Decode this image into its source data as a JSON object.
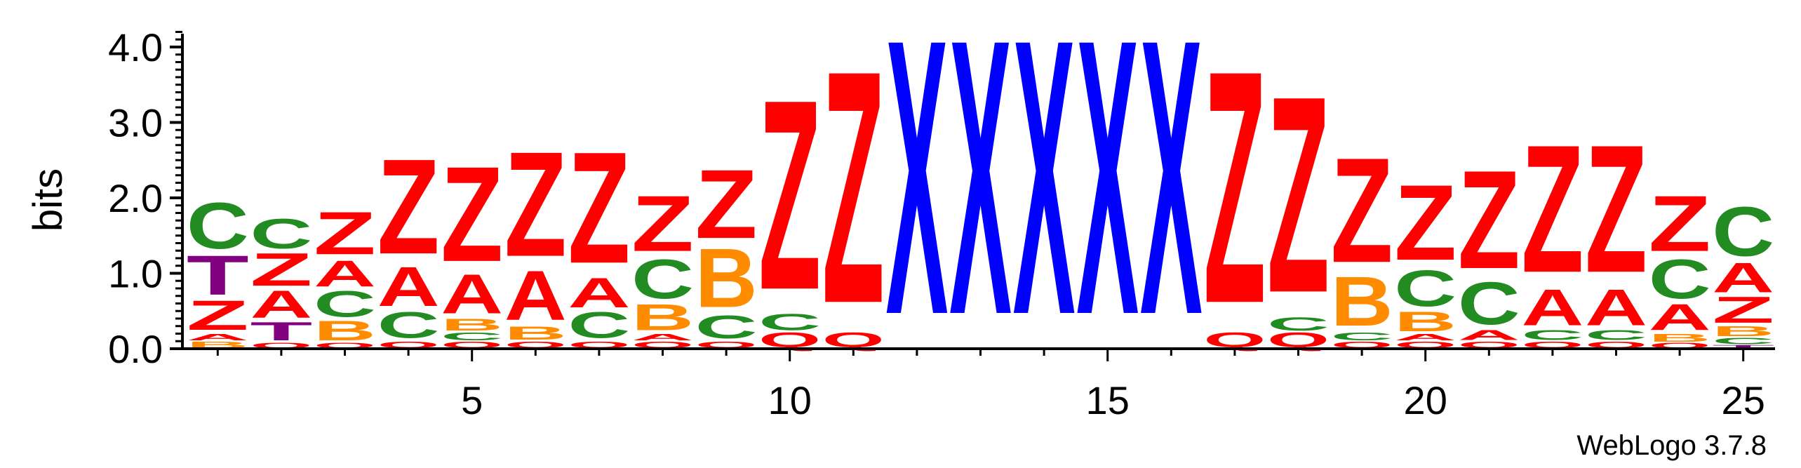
{
  "chart_data": {
    "type": "sequence-logo",
    "ylabel": "bits",
    "ylim": [
      0,
      4.2
    ],
    "yticks": [
      "0.0",
      "1.0",
      "2.0",
      "3.0",
      "4.0"
    ],
    "xticks": [
      5,
      10,
      15,
      20,
      25
    ],
    "credit": "WebLogo 3.7.8",
    "colors": {
      "Z": "#ff0000",
      "Q": "#ff0000",
      "A": "#ff0000",
      "X": "#0000ff",
      "C": "#228b22",
      "B": "#ff8c00",
      "T": "#800080"
    },
    "positions": [
      {
        "pos": 1,
        "stack": [
          [
            "B",
            0.1
          ],
          [
            "A",
            0.1
          ],
          [
            "Z",
            0.45
          ],
          [
            "T",
            0.6
          ],
          [
            "C",
            0.7
          ]
        ]
      },
      {
        "pos": 2,
        "stack": [
          [
            "Q",
            0.08
          ],
          [
            "T",
            0.28
          ],
          [
            "A",
            0.42
          ],
          [
            "Z",
            0.5
          ],
          [
            "C",
            0.45
          ]
        ]
      },
      {
        "pos": 3,
        "stack": [
          [
            "Q",
            0.08
          ],
          [
            "B",
            0.3
          ],
          [
            "C",
            0.4
          ],
          [
            "A",
            0.4
          ],
          [
            "Z",
            0.65
          ]
        ]
      },
      {
        "pos": 4,
        "stack": [
          [
            "Q",
            0.1
          ],
          [
            "C",
            0.4
          ],
          [
            "A",
            0.6
          ],
          [
            "Z",
            1.45
          ]
        ]
      },
      {
        "pos": 5,
        "stack": [
          [
            "Q",
            0.1
          ],
          [
            "C",
            0.12
          ],
          [
            "B",
            0.18
          ],
          [
            "A",
            0.6
          ],
          [
            "Z",
            1.45
          ]
        ]
      },
      {
        "pos": 6,
        "stack": [
          [
            "Q",
            0.1
          ],
          [
            "B",
            0.2
          ],
          [
            "A",
            0.75
          ],
          [
            "Z",
            1.6
          ]
        ]
      },
      {
        "pos": 7,
        "stack": [
          [
            "Q",
            0.1
          ],
          [
            "C",
            0.4
          ],
          [
            "A",
            0.45
          ],
          [
            "Z",
            1.7
          ]
        ]
      },
      {
        "pos": 8,
        "stack": [
          [
            "Q",
            0.1
          ],
          [
            "A",
            0.1
          ],
          [
            "B",
            0.4
          ],
          [
            "C",
            0.6
          ],
          [
            "Z",
            0.85
          ]
        ]
      },
      {
        "pos": 9,
        "stack": [
          [
            "Q",
            0.1
          ],
          [
            "C",
            0.35
          ],
          [
            "B",
            0.9
          ],
          [
            "Z",
            1.05
          ]
        ]
      },
      {
        "pos": 10,
        "stack": [
          [
            "Q",
            0.22
          ],
          [
            "C",
            0.25
          ],
          [
            "Z",
            2.9
          ]
        ]
      },
      {
        "pos": 11,
        "stack": [
          [
            "Q",
            0.22
          ],
          [
            "Z",
            3.55
          ]
        ]
      },
      {
        "pos": 12,
        "stack": [
          [
            "X",
            4.2
          ]
        ]
      },
      {
        "pos": 13,
        "stack": [
          [
            "X",
            4.2
          ]
        ]
      },
      {
        "pos": 14,
        "stack": [
          [
            "X",
            4.2
          ]
        ]
      },
      {
        "pos": 15,
        "stack": [
          [
            "X",
            4.2
          ]
        ]
      },
      {
        "pos": 16,
        "stack": [
          [
            "X",
            4.2
          ]
        ]
      },
      {
        "pos": 17,
        "stack": [
          [
            "Q",
            0.22
          ],
          [
            "Z",
            3.55
          ]
        ]
      },
      {
        "pos": 18,
        "stack": [
          [
            "Q",
            0.22
          ],
          [
            "C",
            0.2
          ],
          [
            "Z",
            3.0
          ]
        ]
      },
      {
        "pos": 19,
        "stack": [
          [
            "Q",
            0.1
          ],
          [
            "C",
            0.12
          ],
          [
            "B",
            0.75
          ],
          [
            "Z",
            1.6
          ]
        ]
      },
      {
        "pos": 20,
        "stack": [
          [
            "Q",
            0.1
          ],
          [
            "A",
            0.1
          ],
          [
            "B",
            0.3
          ],
          [
            "C",
            0.55
          ],
          [
            "Z",
            1.15
          ]
        ]
      },
      {
        "pos": 21,
        "stack": [
          [
            "Q",
            0.1
          ],
          [
            "A",
            0.15
          ],
          [
            "C",
            0.65
          ],
          [
            "Z",
            1.5
          ]
        ]
      },
      {
        "pos": 22,
        "stack": [
          [
            "Q",
            0.1
          ],
          [
            "C",
            0.15
          ],
          [
            "A",
            0.55
          ],
          [
            "Z",
            1.95
          ]
        ]
      },
      {
        "pos": 23,
        "stack": [
          [
            "Q",
            0.1
          ],
          [
            "C",
            0.15
          ],
          [
            "A",
            0.55
          ],
          [
            "Z",
            1.95
          ]
        ]
      },
      {
        "pos": 24,
        "stack": [
          [
            "Q",
            0.08
          ],
          [
            "B",
            0.12
          ],
          [
            "A",
            0.4
          ],
          [
            "C",
            0.6
          ],
          [
            "Z",
            0.85
          ]
        ]
      },
      {
        "pos": 25,
        "stack": [
          [
            "T",
            0.05
          ],
          [
            "C",
            0.1
          ],
          [
            "B",
            0.15
          ],
          [
            "Z",
            0.4
          ],
          [
            "A",
            0.45
          ],
          [
            "C",
            0.75
          ]
        ]
      }
    ]
  }
}
